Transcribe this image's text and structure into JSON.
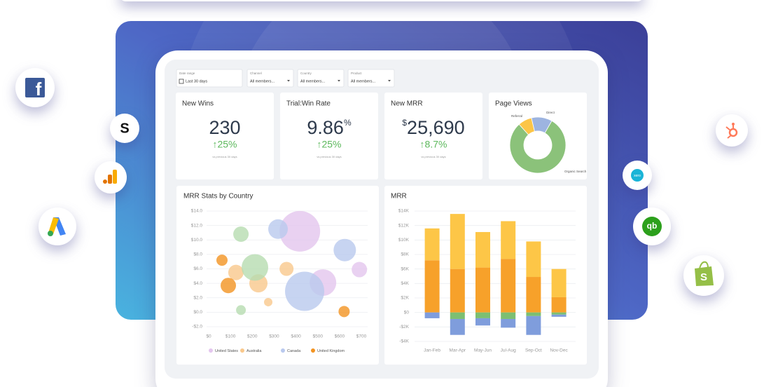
{
  "logos": {
    "facebook": "f",
    "stripe": "S",
    "xero": "xero",
    "quickbooks": "qb",
    "shopify": "S"
  },
  "filters": [
    {
      "label": "Date range",
      "value": "Last 30 days"
    },
    {
      "label": "Channel",
      "value": "All members..."
    },
    {
      "label": "Country",
      "value": "All members..."
    },
    {
      "label": "Product",
      "value": "All members..."
    }
  ],
  "kpis": [
    {
      "title": "New Wins",
      "value": "230",
      "change": "↑25%",
      "note": "vs previous 30 days"
    },
    {
      "title": "Trial:Win Rate",
      "value": "9.86",
      "suffix": "%",
      "change": "↑25%",
      "note": "vs previous 30 days"
    },
    {
      "title": "New MRR",
      "prefix": "$",
      "value": "25,690",
      "change": "↑8.7%",
      "note": "vs previous 30 days"
    }
  ],
  "page_views": {
    "type": "pie",
    "title": "Page Views",
    "categories": [
      "Organic Search",
      "Referral",
      "Direct"
    ],
    "values": [
      80,
      8,
      12
    ],
    "colors": [
      "#8bc27a",
      "#fcc547",
      "#9db4e0"
    ]
  },
  "bubble": {
    "type": "scatter",
    "title": "MRR Stats by Country",
    "xlim": [
      0,
      700
    ],
    "ylim": [
      -2,
      14
    ],
    "xticks": [
      {
        "value": 0,
        "label": "$0"
      },
      {
        "value": 100,
        "label": "$100"
      },
      {
        "value": 200,
        "label": "$200"
      },
      {
        "value": 300,
        "label": "$300"
      },
      {
        "value": 400,
        "label": "$400"
      },
      {
        "value": 500,
        "label": "$500"
      },
      {
        "value": 600,
        "label": "$600"
      },
      {
        "value": 700,
        "label": "$700"
      }
    ],
    "yticks": [
      {
        "value": 14,
        "label": "$14.0"
      },
      {
        "value": 12,
        "label": "$12.0"
      },
      {
        "value": 10,
        "label": "$10.0"
      },
      {
        "value": 8,
        "label": "$8.0"
      },
      {
        "value": 6,
        "label": "$6.0"
      },
      {
        "value": 4,
        "label": "$4.0"
      },
      {
        "value": 2,
        "label": "$2.0"
      },
      {
        "value": 0,
        "label": "$0.0"
      },
      {
        "value": -2,
        "label": "-$2.0"
      }
    ],
    "series": [
      {
        "name": "United States",
        "color": "#e3c6ee",
        "x": [
          418,
          524,
          691
        ],
        "y": [
          11.2,
          4.1,
          5.9
        ],
        "size": [
          29,
          19,
          11
        ]
      },
      {
        "name": "Australia",
        "color": "#f9c88c",
        "x": [
          125,
          228,
          357,
          273
        ],
        "y": [
          5.5,
          4.0,
          6.0,
          1.4
        ],
        "size": [
          11,
          13,
          10,
          6
        ]
      },
      {
        "name": "Canada",
        "color": "#b9c9ee",
        "x": [
          318,
          624,
          440
        ],
        "y": [
          11.5,
          8.6,
          2.9
        ],
        "size": [
          14,
          16,
          28
        ]
      },
      {
        "name": "United Kingdom",
        "color": "#f39422",
        "x": [
          61,
          90,
          621
        ],
        "y": [
          7.2,
          3.7,
          0.1
        ],
        "size": [
          8,
          11,
          8
        ]
      },
      {
        "color": "#b6dcb0",
        "x": [
          148,
          212,
          148
        ],
        "y": [
          10.8,
          6.2,
          0.3
        ],
        "size": [
          11,
          19,
          7
        ]
      }
    ]
  },
  "bar": {
    "type": "bar",
    "title": "MRR",
    "stacked": true,
    "categories": [
      "Jan-Feb",
      "Mar-Apr",
      "May-Jun",
      "Jul-Aug",
      "Sep-Oct",
      "Nov-Dec"
    ],
    "ylim": [
      -4,
      14
    ],
    "yticks": [
      {
        "value": 14,
        "label": "$14K"
      },
      {
        "value": 12,
        "label": "$12K"
      },
      {
        "value": 10,
        "label": "$10K"
      },
      {
        "value": 8,
        "label": "$8K"
      },
      {
        "value": 6,
        "label": "$6K"
      },
      {
        "value": 4,
        "label": "$4K"
      },
      {
        "value": 2,
        "label": "$2K"
      },
      {
        "value": 0,
        "label": "$0"
      },
      {
        "value": -2,
        "label": "-$2K"
      },
      {
        "value": -4,
        "label": "-$4K"
      }
    ],
    "series": [
      {
        "color": "#f7a12a",
        "values": [
          7.2,
          6.0,
          6.2,
          7.4,
          4.9,
          2.1
        ]
      },
      {
        "color": "#fdc647",
        "values": [
          4.4,
          7.6,
          4.9,
          5.2,
          4.9,
          3.9
        ]
      },
      {
        "color": "#7cbf72",
        "values": [
          0,
          -0.9,
          -0.8,
          -0.9,
          -0.5,
          -0.3
        ]
      },
      {
        "color": "#7f9ddc",
        "values": [
          -0.8,
          -2.2,
          -1.0,
          -1.2,
          -2.6,
          -0.3
        ]
      }
    ]
  }
}
